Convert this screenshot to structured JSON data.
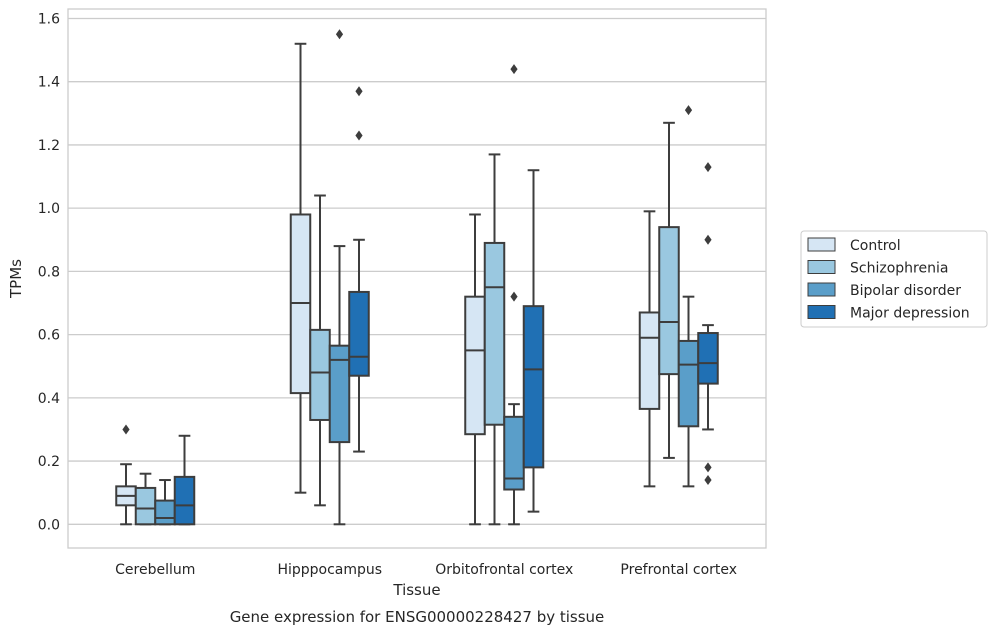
{
  "caption": "Gene expression for ENSG00000228427 by tissue",
  "chart_data": {
    "type": "box",
    "xlabel": "Tissue",
    "ylabel": "TPMs",
    "ylim": [
      -0.075,
      1.63
    ],
    "yticks": [
      0.0,
      0.2,
      0.4,
      0.6,
      0.8,
      1.0,
      1.2,
      1.4,
      1.6
    ],
    "ytick_labels": [
      "0.0",
      "0.2",
      "0.4",
      "0.6",
      "0.8",
      "1.0",
      "1.2",
      "1.4",
      "1.6"
    ],
    "grid": "horizontal",
    "legend_position": "right",
    "categories": [
      "Cerebellum",
      "Hipppocampus",
      "Orbitofrontal cortex",
      "Prefrontal cortex"
    ],
    "series": [
      {
        "name": "Control",
        "color": "#d6e6f4",
        "boxes": [
          {
            "whislo": 0.0,
            "q1": 0.06,
            "med": 0.09,
            "q3": 0.12,
            "whishi": 0.19,
            "fliers": [
              0.3
            ]
          },
          {
            "whislo": 0.1,
            "q1": 0.415,
            "med": 0.7,
            "q3": 0.98,
            "whishi": 1.52,
            "fliers": []
          },
          {
            "whislo": 0.0,
            "q1": 0.285,
            "med": 0.55,
            "q3": 0.72,
            "whishi": 0.98,
            "fliers": []
          },
          {
            "whislo": 0.12,
            "q1": 0.365,
            "med": 0.59,
            "q3": 0.67,
            "whishi": 0.99,
            "fliers": []
          }
        ]
      },
      {
        "name": "Schizophrenia",
        "color": "#9ac8e0",
        "boxes": [
          {
            "whislo": 0.0,
            "q1": 0.0,
            "med": 0.05,
            "q3": 0.115,
            "whishi": 0.16,
            "fliers": []
          },
          {
            "whislo": 0.06,
            "q1": 0.33,
            "med": 0.48,
            "q3": 0.615,
            "whishi": 1.04,
            "fliers": []
          },
          {
            "whislo": 0.0,
            "q1": 0.315,
            "med": 0.75,
            "q3": 0.89,
            "whishi": 1.17,
            "fliers": []
          },
          {
            "whislo": 0.21,
            "q1": 0.475,
            "med": 0.64,
            "q3": 0.94,
            "whishi": 1.27,
            "fliers": []
          }
        ]
      },
      {
        "name": "Bipolar disorder",
        "color": "#5a9ec9",
        "boxes": [
          {
            "whislo": 0.0,
            "q1": 0.0,
            "med": 0.02,
            "q3": 0.075,
            "whishi": 0.14,
            "fliers": []
          },
          {
            "whislo": 0.0,
            "q1": 0.26,
            "med": 0.52,
            "q3": 0.565,
            "whishi": 0.88,
            "fliers": [
              1.55
            ]
          },
          {
            "whislo": 0.0,
            "q1": 0.11,
            "med": 0.145,
            "q3": 0.34,
            "whishi": 0.38,
            "fliers": [
              0.72,
              1.44
            ]
          },
          {
            "whislo": 0.12,
            "q1": 0.31,
            "med": 0.505,
            "q3": 0.58,
            "whishi": 0.72,
            "fliers": [
              1.31
            ]
          }
        ]
      },
      {
        "name": "Major depression",
        "color": "#2070b4",
        "boxes": [
          {
            "whislo": 0.0,
            "q1": 0.0,
            "med": 0.06,
            "q3": 0.15,
            "whishi": 0.28,
            "fliers": []
          },
          {
            "whislo": 0.23,
            "q1": 0.47,
            "med": 0.53,
            "q3": 0.735,
            "whishi": 0.9,
            "fliers": [
              1.23,
              1.37
            ]
          },
          {
            "whislo": 0.04,
            "q1": 0.18,
            "med": 0.49,
            "q3": 0.69,
            "whishi": 1.12,
            "fliers": []
          },
          {
            "whislo": 0.3,
            "q1": 0.445,
            "med": 0.51,
            "q3": 0.605,
            "whishi": 0.63,
            "fliers": [
              0.14,
              0.18,
              0.9,
              1.13
            ]
          }
        ]
      }
    ]
  }
}
